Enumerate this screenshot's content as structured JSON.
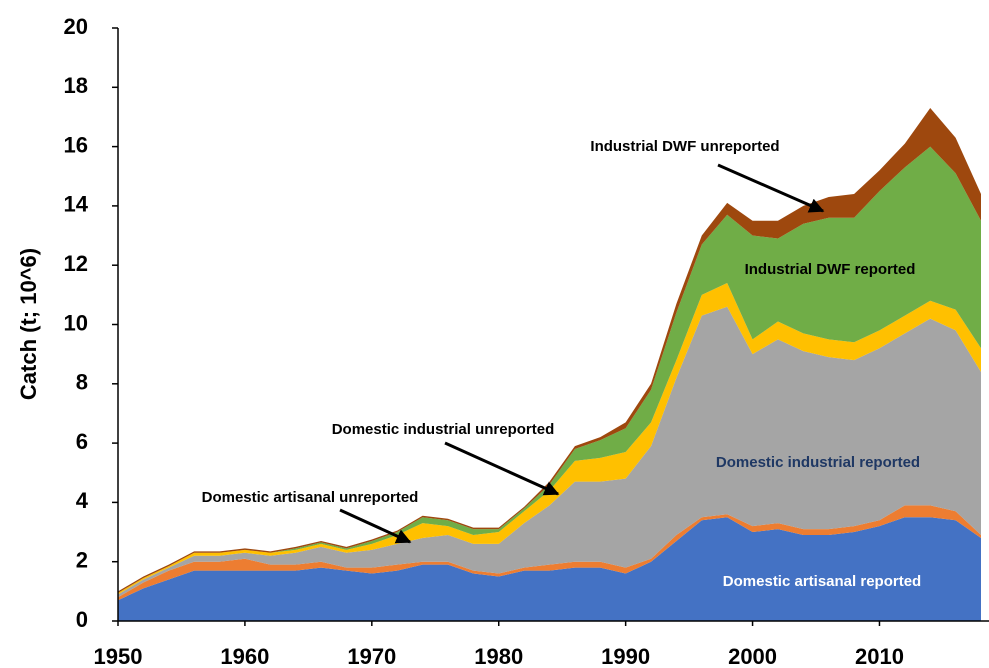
{
  "chart_data": {
    "type": "stacked-area",
    "y_label": "Catch (t; 10^6)",
    "x": [
      1950,
      1952,
      1954,
      1956,
      1958,
      1960,
      1962,
      1964,
      1966,
      1968,
      1970,
      1972,
      1974,
      1976,
      1978,
      1980,
      1982,
      1984,
      1986,
      1988,
      1990,
      1992,
      1994,
      1996,
      1998,
      2000,
      2002,
      2004,
      2006,
      2008,
      2010,
      2012,
      2014,
      2016,
      2018
    ],
    "xlim": [
      1950,
      2018
    ],
    "xticks": [
      1950,
      1960,
      1970,
      1980,
      1990,
      2000,
      2010
    ],
    "ylim": [
      0,
      20
    ],
    "yticks": [
      0,
      2,
      4,
      6,
      8,
      10,
      12,
      14,
      16,
      18,
      20
    ],
    "series": [
      {
        "name": "Domestic artisanal reported",
        "color": "#4472c4",
        "values": [
          0.7,
          1.1,
          1.4,
          1.7,
          1.7,
          1.7,
          1.7,
          1.7,
          1.8,
          1.7,
          1.6,
          1.7,
          1.9,
          1.9,
          1.6,
          1.5,
          1.7,
          1.7,
          1.8,
          1.8,
          1.6,
          2.0,
          2.7,
          3.4,
          3.5,
          3.0,
          3.1,
          2.9,
          2.9,
          3.0,
          3.2,
          3.5,
          3.5,
          3.4,
          2.8
        ]
      },
      {
        "name": "Domestic artisanal unreported",
        "color": "#ed7d31",
        "values": [
          0.1,
          0.2,
          0.3,
          0.3,
          0.3,
          0.4,
          0.2,
          0.2,
          0.2,
          0.1,
          0.2,
          0.2,
          0.1,
          0.1,
          0.1,
          0.1,
          0.1,
          0.2,
          0.2,
          0.2,
          0.2,
          0.1,
          0.2,
          0.1,
          0.1,
          0.2,
          0.2,
          0.2,
          0.2,
          0.2,
          0.2,
          0.4,
          0.4,
          0.3,
          0.1
        ]
      },
      {
        "name": "Domestic industrial reported",
        "color": "#a5a5a5",
        "values": [
          0.1,
          0.1,
          0.1,
          0.2,
          0.2,
          0.2,
          0.3,
          0.4,
          0.5,
          0.5,
          0.6,
          0.7,
          0.8,
          0.9,
          0.9,
          1.0,
          1.5,
          2.0,
          2.7,
          2.7,
          3.0,
          3.8,
          5.3,
          6.8,
          7.0,
          5.8,
          6.2,
          6.0,
          5.8,
          5.6,
          5.8,
          5.8,
          6.3,
          6.1,
          5.5
        ]
      },
      {
        "name": "Domestic industrial unreported",
        "color": "#ffc000",
        "values": [
          0.05,
          0.05,
          0.05,
          0.1,
          0.1,
          0.1,
          0.1,
          0.1,
          0.1,
          0.1,
          0.2,
          0.3,
          0.5,
          0.3,
          0.3,
          0.4,
          0.4,
          0.5,
          0.7,
          0.8,
          0.9,
          0.8,
          0.6,
          0.7,
          0.8,
          0.5,
          0.6,
          0.6,
          0.6,
          0.6,
          0.6,
          0.6,
          0.6,
          0.7,
          0.8
        ]
      },
      {
        "name": "Industrial DWF reported",
        "color": "#70ad47",
        "values": [
          0,
          0,
          0,
          0,
          0,
          0,
          0,
          0.05,
          0.05,
          0.05,
          0.1,
          0.1,
          0.2,
          0.2,
          0.2,
          0.1,
          0.1,
          0.2,
          0.4,
          0.6,
          0.8,
          1.1,
          1.6,
          1.7,
          2.3,
          3.5,
          2.8,
          3.7,
          4.1,
          4.2,
          4.7,
          5.0,
          5.2,
          4.6,
          4.3
        ]
      },
      {
        "name": "Industrial DWF unreported",
        "color": "#9e480e",
        "values": [
          0.05,
          0.05,
          0.05,
          0.05,
          0.05,
          0.05,
          0.05,
          0.05,
          0.05,
          0.05,
          0.05,
          0.05,
          0.05,
          0.05,
          0.05,
          0.05,
          0.05,
          0.1,
          0.1,
          0.1,
          0.2,
          0.2,
          0.3,
          0.3,
          0.4,
          0.5,
          0.6,
          0.6,
          0.7,
          0.8,
          0.7,
          0.8,
          1.3,
          1.2,
          0.9
        ]
      }
    ]
  }
}
